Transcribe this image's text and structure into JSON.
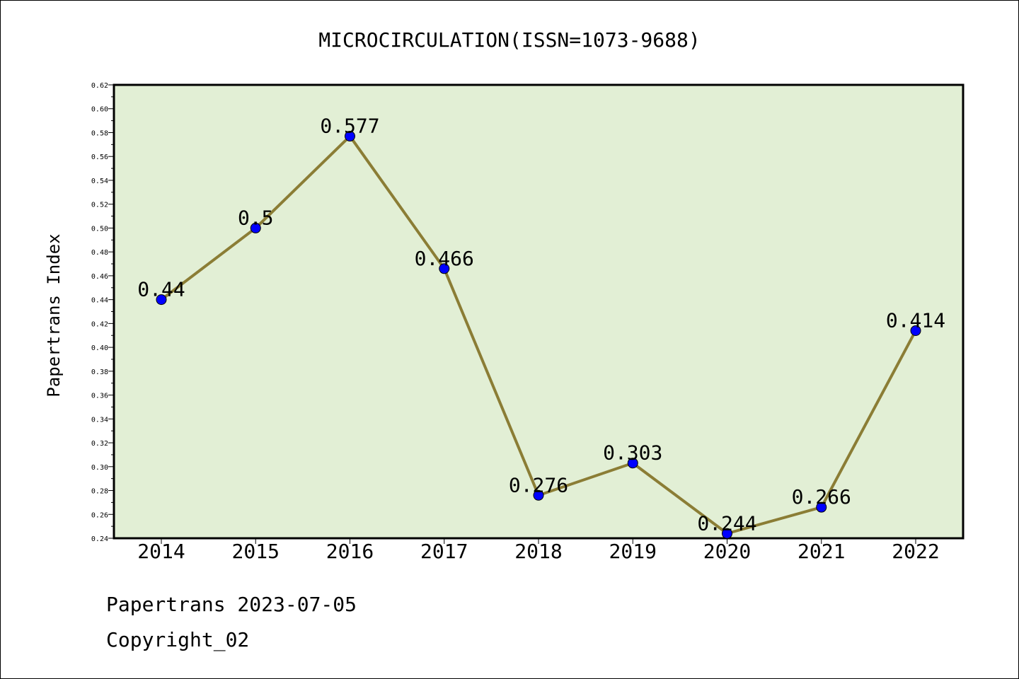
{
  "chart_data": {
    "type": "line",
    "title": "MICROCIRCULATION(ISSN=1073-9688)",
    "xlabel": "",
    "ylabel": "Papertrans Index",
    "categories": [
      "2014",
      "2015",
      "2016",
      "2017",
      "2018",
      "2019",
      "2020",
      "2021",
      "2022"
    ],
    "series": [
      {
        "values": [
          0.44,
          0.5,
          0.577,
          0.466,
          0.276,
          0.303,
          0.244,
          0.266,
          0.414
        ],
        "labels": [
          "0.44",
          "0.5",
          "0.577",
          "0.466",
          "0.276",
          "0.303",
          "0.244",
          "0.266",
          "0.414"
        ]
      }
    ],
    "ylim": [
      0.24,
      0.62
    ],
    "yticks": [
      "0.24",
      "0.26",
      "0.28",
      "0.30",
      "0.32",
      "0.34",
      "0.36",
      "0.38",
      "0.40",
      "0.42",
      "0.44",
      "0.46",
      "0.48",
      "0.50",
      "0.52",
      "0.54",
      "0.56",
      "0.58",
      "0.60",
      "0.62"
    ],
    "grid": false,
    "colors": {
      "plot_background": "#e2efd5",
      "line": "#8b7d35",
      "marker": "#0000ff"
    }
  },
  "footer": {
    "line1": "Papertrans 2023-07-05",
    "line2": "Copyright_02"
  }
}
